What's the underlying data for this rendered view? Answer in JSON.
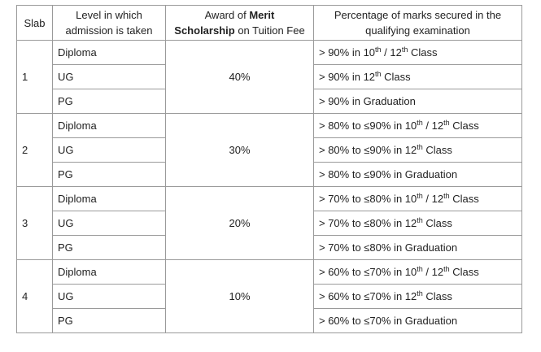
{
  "headers": {
    "slab": "Slab",
    "level_line1": "Level in which",
    "level_line2": "admission is taken",
    "award_line1_pre": "Award of ",
    "award_line1_bold": "Merit",
    "award_line2_bold": "Scholarship",
    "award_line2_post": " on Tuition Fee",
    "pct_line1": "Percentage of marks secured in the",
    "pct_line2": "qualifying examination"
  },
  "slabs": [
    {
      "slab": "1",
      "award": "40%",
      "rows": [
        {
          "level": "Diploma",
          "crit_pre": "> 90% in 10",
          "crit_sup1": "th",
          "crit_mid": " / 12",
          "crit_sup2": "th",
          "crit_post": " Class"
        },
        {
          "level": "UG",
          "crit_pre": "> 90% in 12",
          "crit_sup1": "th",
          "crit_mid": "",
          "crit_sup2": "",
          "crit_post": " Class"
        },
        {
          "level": "PG",
          "crit_pre": "> 90% in Graduation",
          "crit_sup1": "",
          "crit_mid": "",
          "crit_sup2": "",
          "crit_post": ""
        }
      ]
    },
    {
      "slab": "2",
      "award": "30%",
      "rows": [
        {
          "level": "Diploma",
          "crit_pre": "> 80% to ≤90%  in 10",
          "crit_sup1": "th",
          "crit_mid": " / 12",
          "crit_sup2": "th",
          "crit_post": " Class"
        },
        {
          "level": "UG",
          "crit_pre": "> 80% to ≤90%  in 12",
          "crit_sup1": "th",
          "crit_mid": "",
          "crit_sup2": "",
          "crit_post": " Class"
        },
        {
          "level": "PG",
          "crit_pre": "> 80% to ≤90%  in Graduation",
          "crit_sup1": "",
          "crit_mid": "",
          "crit_sup2": "",
          "crit_post": ""
        }
      ]
    },
    {
      "slab": "3",
      "award": "20%",
      "rows": [
        {
          "level": "Diploma",
          "crit_pre": "> 70% to ≤80%  in 10",
          "crit_sup1": "th",
          "crit_mid": " / 12",
          "crit_sup2": "th",
          "crit_post": " Class"
        },
        {
          "level": "UG",
          "crit_pre": "> 70% to ≤80%  in 12",
          "crit_sup1": "th",
          "crit_mid": "",
          "crit_sup2": "",
          "crit_post": " Class"
        },
        {
          "level": "PG",
          "crit_pre": "> 70% to ≤80%  in Graduation",
          "crit_sup1": "",
          "crit_mid": "",
          "crit_sup2": "",
          "crit_post": ""
        }
      ]
    },
    {
      "slab": "4",
      "award": "10%",
      "rows": [
        {
          "level": "Diploma",
          "crit_pre": "> 60% to ≤70%  in 10",
          "crit_sup1": "th",
          "crit_mid": " / 12",
          "crit_sup2": "th",
          "crit_post": " Class"
        },
        {
          "level": "UG",
          "crit_pre": "> 60% to ≤70%  in 12",
          "crit_sup1": "th",
          "crit_mid": "",
          "crit_sup2": "",
          "crit_post": " Class"
        },
        {
          "level": "PG",
          "crit_pre": "> 60% to ≤70%  in Graduation",
          "crit_sup1": "",
          "crit_mid": "",
          "crit_sup2": "",
          "crit_post": ""
        }
      ]
    }
  ]
}
